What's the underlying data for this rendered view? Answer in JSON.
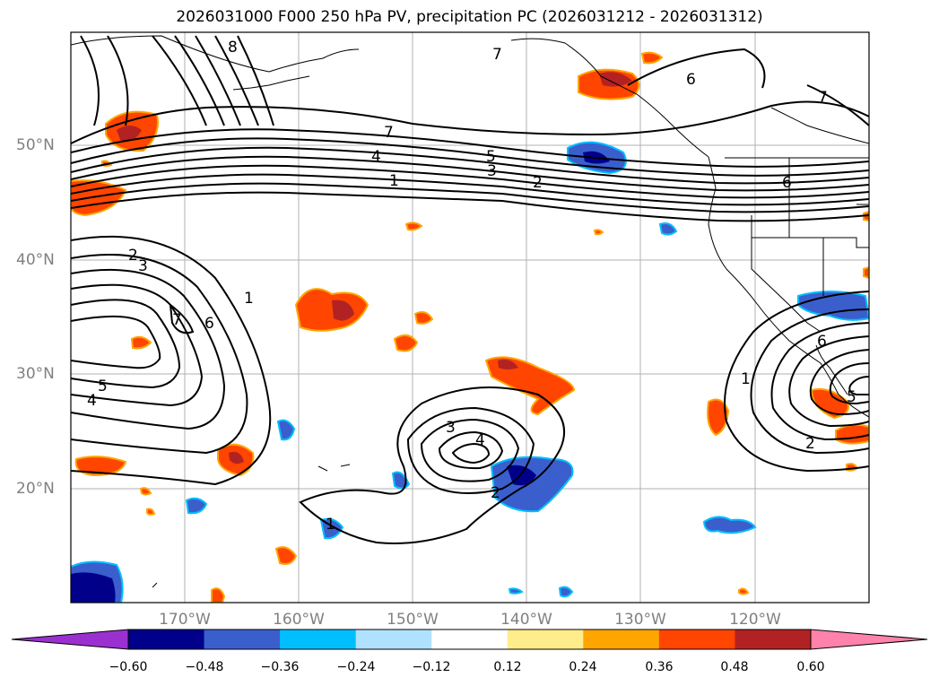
{
  "title": "2026031000 F000 250 hPa PV, precipitation PC (2026031212 - 2026031312)",
  "latitude_labels": [
    "50°N",
    "40°N",
    "30°N",
    "20°N"
  ],
  "longitude_labels": [
    "170°W",
    "160°W",
    "150°W",
    "140°W",
    "130°W",
    "120°W"
  ],
  "colorbar": {
    "ticks": [
      "−0.60",
      "−0.48",
      "−0.36",
      "−0.24",
      "−0.12",
      "0.12",
      "0.24",
      "0.36",
      "0.48",
      "0.60"
    ],
    "colors": [
      "#9b30d0",
      "#00008b",
      "#3a5fcd",
      "#00bfff",
      "#b0e2ff",
      "#ffffff",
      "#ffec8b",
      "#ffa500",
      "#ff4500",
      "#b22222",
      "#ff82ab"
    ]
  },
  "contour_labels": [
    "8",
    "7",
    "6",
    "7",
    "7",
    "4",
    "5",
    "3",
    "1",
    "2",
    "6",
    "2",
    "3",
    "7",
    "6",
    "1",
    "5",
    "4",
    "3",
    "4",
    "2",
    "1",
    "1",
    "6",
    "5",
    "2"
  ]
}
